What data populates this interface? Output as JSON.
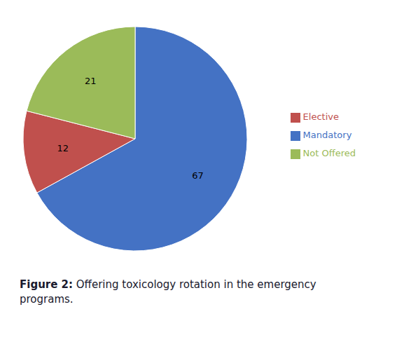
{
  "chart_data": {
    "type": "pie",
    "categories": [
      "Mandatory",
      "Elective",
      "Not Offered"
    ],
    "values": [
      67,
      12,
      21
    ],
    "colors": [
      "#4472C4",
      "#C0504D",
      "#9BBB59"
    ],
    "data_labels": true,
    "legend": "right",
    "annotations": [
      "Figure 2:",
      " Offering toxicology rotation in the emergency\nprograms."
    ]
  }
}
